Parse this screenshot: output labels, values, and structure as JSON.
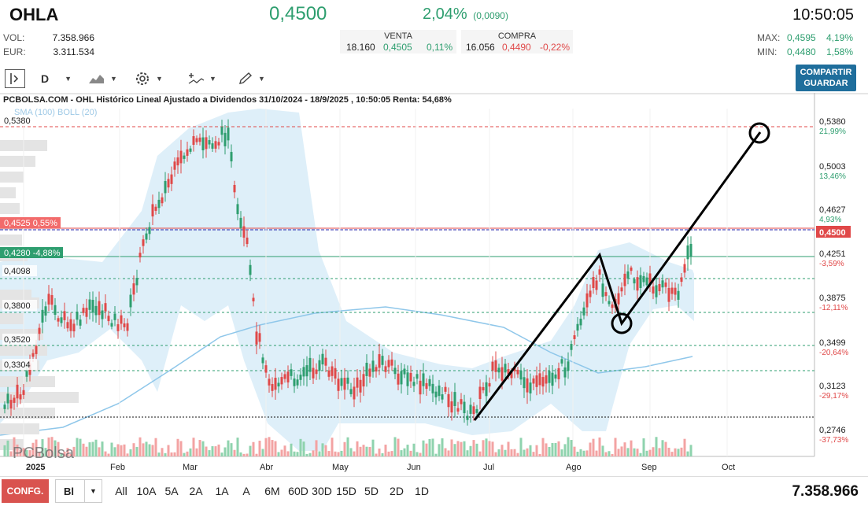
{
  "header": {
    "ticker": "OHLA",
    "price": "0,4500",
    "change_pct": "2,04%",
    "change_abs": "(0,0090)",
    "time": "10:50:05",
    "vol_label": "VOL:",
    "vol_value": "7.358.966",
    "eur_label": "EUR:",
    "eur_value": "3.311.534",
    "venta": {
      "title": "VENTA",
      "qty": "18.160",
      "price": "0,4505",
      "pct": "0,11%"
    },
    "compra": {
      "title": "COMPRA",
      "qty": "16.056",
      "price": "0,4490",
      "pct": "-0,22%"
    },
    "max_label": "MAX:",
    "max_value": "0,4595",
    "max_pct": "4,19%",
    "min_label": "MIN:",
    "min_value": "0,4480",
    "min_pct": "1,58%"
  },
  "toolbar": {
    "period": "D",
    "save_label_1": "COMPARTIR",
    "save_label_2": "GUARDAR"
  },
  "chart": {
    "title": "PCBOLSA.COM - OHL Histórico Lineal Ajustado a Dividendos 31/10/2024 - 18/9/2025 , 10:50:05 Renta: 54,68%",
    "indicators": "SMA (100)  BOLL (20)",
    "watermark": "PCBolsa",
    "year_label": "2025"
  },
  "chart_data": {
    "type": "candlestick",
    "x_labels": [
      "2025",
      "Feb",
      "Mar",
      "Abr",
      "May",
      "Jun",
      "Jul",
      "Ago",
      "Sep",
      "Oct"
    ],
    "y_left_labels": [
      "0,5380",
      "0,4098",
      "0,3800",
      "0,3520",
      "0,3304"
    ],
    "y_right_levels": [
      {
        "price": "0,5380",
        "pct": "21,99%",
        "dir": "up"
      },
      {
        "price": "0,5003",
        "pct": "13,46%",
        "dir": "up"
      },
      {
        "price": "0,4627",
        "pct": "4,93%",
        "dir": "up"
      },
      {
        "price": "0,4251",
        "pct": "-3,59%",
        "dir": "down"
      },
      {
        "price": "0,3875",
        "pct": "-12,11%",
        "dir": "down"
      },
      {
        "price": "0,3499",
        "pct": "-20,64%",
        "dir": "down"
      },
      {
        "price": "0,3123",
        "pct": "-29,17%",
        "dir": "down"
      },
      {
        "price": "0,2746",
        "pct": "-37,73%",
        "dir": "down"
      }
    ],
    "current_price_tag": "0,4500",
    "tag_red": {
      "price": "0,4525",
      "pct": "0,55%"
    },
    "tag_green": {
      "price": "0,4280",
      "pct": "-4,88%"
    },
    "colors": {
      "up": "#2e9e6f",
      "down": "#e04848",
      "boll_fill": "#d6ebf8",
      "sma": "#8fc7ea"
    }
  },
  "bottom": {
    "conf": "CONFG.",
    "bl": "Bl",
    "ranges": [
      "All",
      "10A",
      "5A",
      "2A",
      "1A",
      "A",
      "6M",
      "60D",
      "30D",
      "15D",
      "5D",
      "2D",
      "1D"
    ],
    "total_volume": "7.358.966"
  }
}
